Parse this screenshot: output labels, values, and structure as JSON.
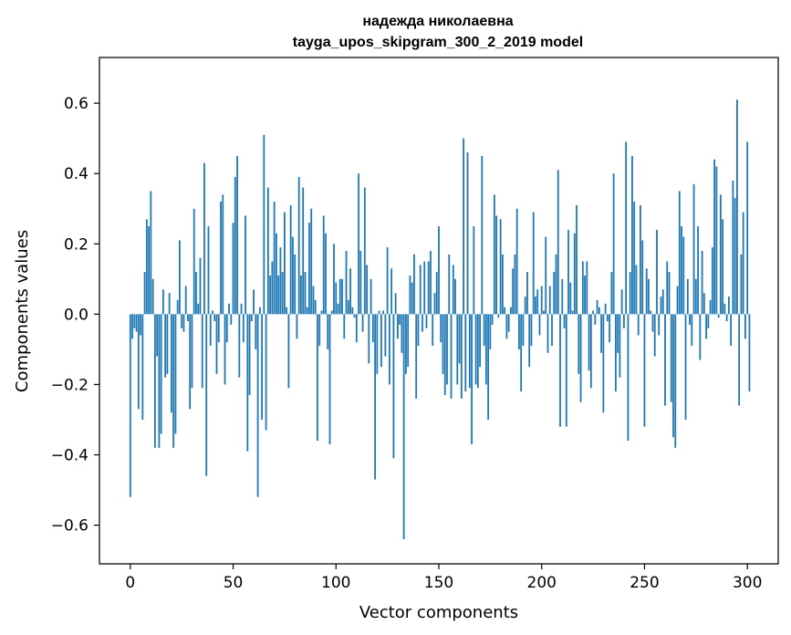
{
  "colors": {
    "bar": "#1f77b4",
    "axis": "#000000",
    "background": "#ffffff"
  },
  "chart_data": {
    "type": "bar",
    "title": "надежда николаевна",
    "subtitle": "tayga_upos_skipgram_300_2_2019 model",
    "xlabel": "Vector components",
    "ylabel": "Components values",
    "xlim": [
      -15,
      315
    ],
    "ylim": [
      -0.71,
      0.73
    ],
    "xticks": [
      0,
      50,
      100,
      150,
      200,
      250,
      300
    ],
    "xtick_labels": [
      "0",
      "50",
      "100",
      "150",
      "200",
      "250",
      "300"
    ],
    "yticks": [
      -0.6,
      -0.4,
      -0.2,
      0.0,
      0.2,
      0.4,
      0.6
    ],
    "ytick_labels": [
      "−0.6",
      "−0.4",
      "−0.2",
      "0.0",
      "0.2",
      "0.4",
      "0.6"
    ],
    "grid": false,
    "values": [
      -0.52,
      -0.07,
      -0.04,
      -0.05,
      -0.27,
      -0.06,
      -0.3,
      0.12,
      0.27,
      0.25,
      0.35,
      0.1,
      -0.38,
      -0.12,
      -0.38,
      -0.34,
      0.07,
      -0.18,
      -0.17,
      0.06,
      -0.28,
      -0.38,
      -0.34,
      0.04,
      0.21,
      -0.04,
      -0.05,
      0.08,
      -0.02,
      -0.27,
      -0.21,
      0.3,
      0.12,
      0.03,
      0.16,
      -0.21,
      0.43,
      -0.46,
      0.25,
      -0.09,
      0.01,
      -0.02,
      -0.17,
      -0.08,
      0.32,
      0.34,
      -0.2,
      -0.08,
      0.03,
      -0.03,
      0.26,
      0.39,
      0.45,
      -0.18,
      0.03,
      -0.08,
      0.28,
      -0.39,
      -0.23,
      -0.02,
      0.07,
      -0.1,
      -0.52,
      0.02,
      -0.3,
      0.51,
      -0.33,
      0.36,
      0.11,
      0.15,
      0.32,
      0.23,
      0.11,
      0.19,
      0.12,
      0.29,
      0.02,
      -0.21,
      0.31,
      0.22,
      0.17,
      -0.07,
      0.39,
      0.11,
      0.36,
      0.12,
      0.02,
      0.26,
      0.3,
      0.08,
      0.04,
      -0.36,
      -0.09,
      0.01,
      0.28,
      0.23,
      -0.1,
      -0.37,
      0.01,
      0.2,
      0.09,
      0.03,
      0.1,
      0.1,
      -0.07,
      0.18,
      0.04,
      0.13,
      0.02,
      -0.01,
      -0.08,
      0.4,
      0.18,
      -0.05,
      0.36,
      0.14,
      -0.14,
      0.1,
      -0.08,
      -0.47,
      -0.17,
      0.01,
      -0.15,
      0.01,
      -0.12,
      0.19,
      -0.2,
      0.13,
      -0.41,
      0.06,
      -0.07,
      -0.03,
      -0.11,
      -0.64,
      -0.17,
      -0.15,
      0.11,
      0.09,
      0.17,
      -0.24,
      -0.09,
      0.14,
      -0.05,
      0.15,
      -0.04,
      0.15,
      0.18,
      -0.09,
      0.06,
      0.12,
      0.25,
      -0.08,
      -0.17,
      -0.23,
      -0.2,
      0.17,
      -0.24,
      0.14,
      0.1,
      -0.2,
      -0.14,
      -0.24,
      0.5,
      -0.22,
      0.46,
      -0.21,
      -0.37,
      0.25,
      -0.2,
      -0.21,
      -0.15,
      0.45,
      -0.09,
      -0.2,
      -0.3,
      -0.1,
      -0.03,
      0.34,
      0.28,
      -0.01,
      0.27,
      0.17,
      0.02,
      -0.07,
      -0.05,
      0.02,
      0.13,
      0.17,
      0.3,
      -0.1,
      -0.22,
      -0.09,
      0.05,
      0.12,
      -0.15,
      -0.09,
      0.29,
      0.05,
      0.07,
      -0.06,
      0.08,
      0.01,
      0.22,
      -0.11,
      0.08,
      -0.09,
      0.12,
      0.17,
      0.41,
      -0.32,
      0.1,
      -0.04,
      -0.32,
      0.24,
      0.09,
      0.01,
      0.23,
      0.31,
      -0.17,
      -0.25,
      0.15,
      0.11,
      0.15,
      -0.16,
      -0.21,
      0.01,
      -0.03,
      0.04,
      0.02,
      -0.11,
      -0.28,
      0.03,
      -0.02,
      -0.08,
      0.12,
      0.4,
      -0.22,
      -0.11,
      -0.18,
      0.07,
      -0.04,
      0.49,
      -0.36,
      0.12,
      0.45,
      0.32,
      0.14,
      -0.06,
      0.31,
      0.21,
      -0.32,
      0.13,
      0.1,
      0.01,
      -0.05,
      -0.12,
      0.24,
      -0.06,
      0.05,
      0.07,
      -0.26,
      0.15,
      0.12,
      -0.25,
      -0.35,
      -0.38,
      0.08,
      0.35,
      0.25,
      0.22,
      -0.3,
      0.1,
      -0.03,
      -0.09,
      0.37,
      0.1,
      0.25,
      -0.13,
      0.18,
      0.06,
      -0.07,
      -0.04,
      0.04,
      0.19,
      0.44,
      0.42,
      -0.01,
      0.34,
      0.27,
      0.03,
      -0.02,
      0.05,
      -0.09,
      0.38,
      0.33,
      0.61,
      -0.26,
      0.17,
      0.29,
      -0.07,
      0.49,
      -0.22
    ]
  }
}
